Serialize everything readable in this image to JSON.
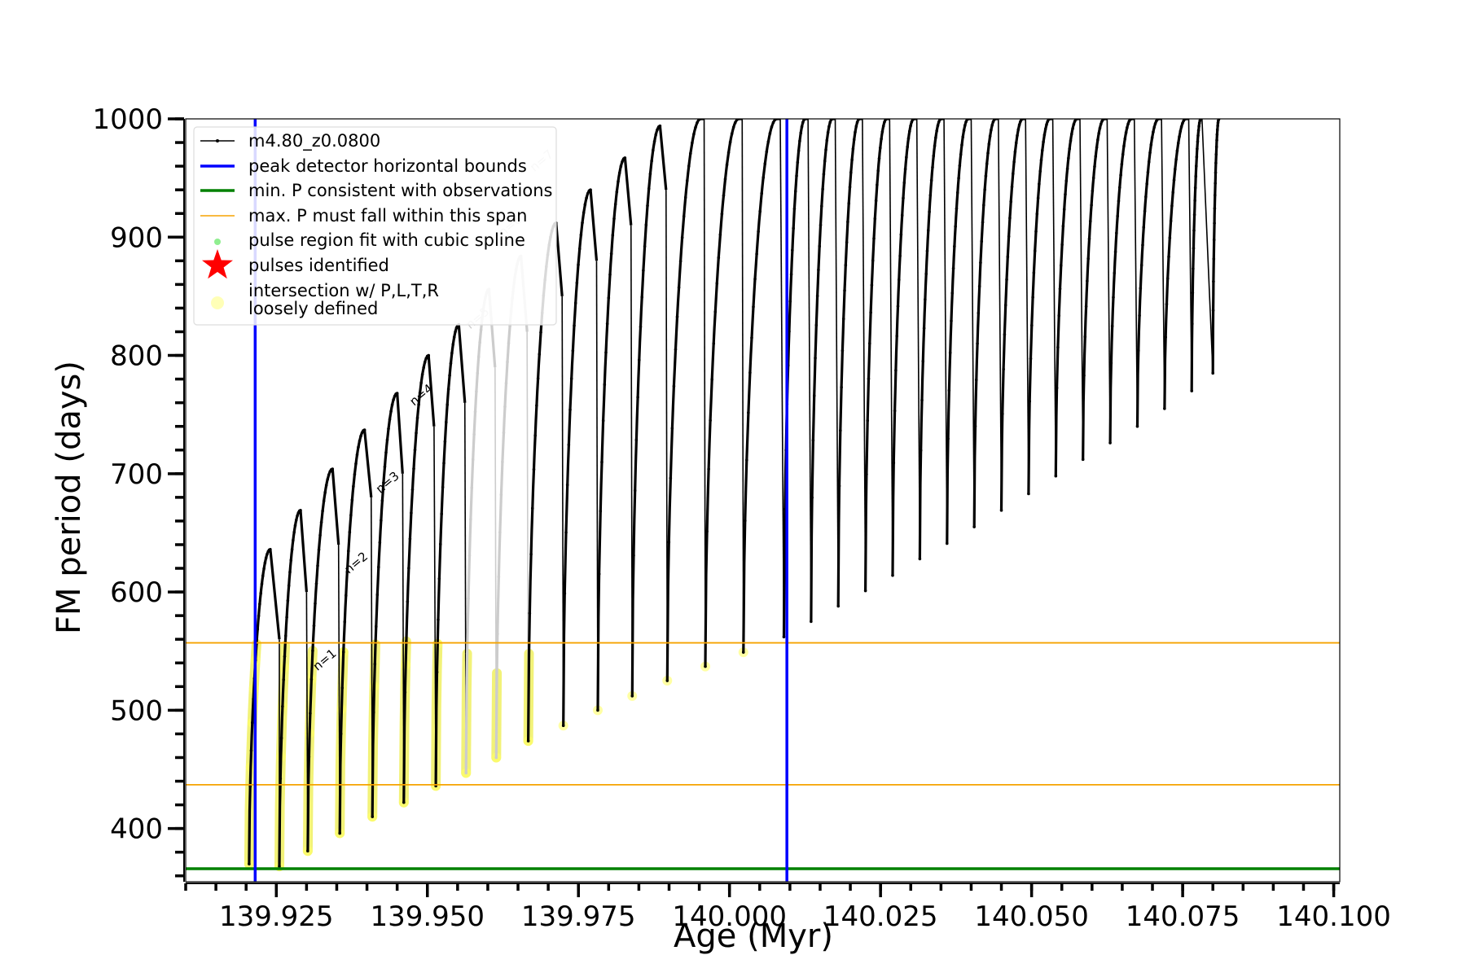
{
  "chart_data": {
    "type": "line",
    "title": "",
    "xlabel": "Age (Myr)",
    "ylabel": "FM period (days)",
    "xlim": [
      139.91,
      140.101
    ],
    "ylim": [
      355,
      1000
    ],
    "xticks": [
      139.925,
      139.95,
      139.975,
      140.0,
      140.025,
      140.05,
      140.075,
      140.1
    ],
    "xtick_labels": [
      "139.925",
      "139.950",
      "139.975",
      "140.000",
      "140.025",
      "140.050",
      "140.075",
      "140.100"
    ],
    "yticks": [
      400,
      500,
      600,
      700,
      800,
      900,
      1000
    ],
    "ytick_labels": [
      "400",
      "500",
      "600",
      "700",
      "800",
      "900",
      "1000"
    ],
    "grid": false,
    "legend_position": "top-left",
    "legend": [
      {
        "label": "m4.80_z0.0800",
        "marker": "line-dot",
        "color": "#000000"
      },
      {
        "label": "peak detector horizontal bounds",
        "marker": "line",
        "color": "#0000ff"
      },
      {
        "label": "min. P consistent with observations",
        "marker": "line",
        "color": "#008000"
      },
      {
        "label": "max. P must fall within this span",
        "marker": "thin-line",
        "color": "#f5a300"
      },
      {
        "label": "pulse region fit with cubic spline",
        "marker": "dot",
        "color": "#90ee90"
      },
      {
        "label": "pulses identified",
        "marker": "star",
        "color": "#ff0000"
      },
      {
        "label": "intersection w/ P,L,T,R",
        "label2": "loosely defined",
        "marker": "circle",
        "color": "#ffff99"
      }
    ],
    "vertical_lines": [
      {
        "x": 139.9215,
        "color": "#0000ff"
      },
      {
        "x": 140.0095,
        "color": "#0000ff"
      }
    ],
    "horizontal_lines": [
      {
        "y": 366,
        "color": "#008000"
      },
      {
        "y": 437,
        "color": "#f5a300"
      },
      {
        "y": 557,
        "color": "#f5a300"
      }
    ],
    "series": [
      {
        "line_color": "#000000",
        "cycles": [
          {
            "start": 139.9205,
            "min": 370,
            "peak_x": 139.924,
            "peak": 636,
            "end_x": 139.9255,
            "end_y": 560,
            "color": "#000000",
            "highlight": true
          },
          {
            "start": 139.9255,
            "min": 368,
            "peak_x": 139.929,
            "peak": 669,
            "end_x": 139.93,
            "end_y": 600,
            "color": "#000000",
            "highlight": true
          },
          {
            "start": 139.9302,
            "min": 381,
            "peak_x": 139.9343,
            "peak": 704,
            "end_x": 139.9353,
            "end_y": 640,
            "color": "#000000",
            "highlight": true
          },
          {
            "start": 139.9355,
            "min": 396,
            "peak_x": 139.9396,
            "peak": 737,
            "end_x": 139.9407,
            "end_y": 680,
            "color": "#000000",
            "highlight": true
          },
          {
            "start": 139.9409,
            "min": 410,
            "peak_x": 139.945,
            "peak": 768,
            "end_x": 139.9459,
            "end_y": 700,
            "color": "#000000",
            "highlight": true
          },
          {
            "start": 139.9461,
            "min": 422,
            "peak_x": 139.9502,
            "peak": 800,
            "end_x": 139.9511,
            "end_y": 740,
            "color": "#000000",
            "highlight": true
          },
          {
            "start": 139.9514,
            "min": 436,
            "peak_x": 139.9552,
            "peak": 826,
            "end_x": 139.9562,
            "end_y": 760,
            "color": "#000000",
            "highlight": true
          },
          {
            "start": 139.9564,
            "min": 447,
            "peak_x": 139.9602,
            "peak": 856,
            "end_x": 139.9612,
            "end_y": 790,
            "color": "#cccccc",
            "highlight": true
          },
          {
            "start": 139.9614,
            "min": 460,
            "peak_x": 139.9655,
            "peak": 884,
            "end_x": 139.9665,
            "end_y": 820,
            "color": "#cccccc",
            "highlight": true
          },
          {
            "start": 139.9667,
            "min": 474,
            "peak_x": 139.9713,
            "peak": 912,
            "end_x": 139.9723,
            "end_y": 850,
            "color": "#000000",
            "highlight": true
          },
          {
            "start": 139.9725,
            "min": 487,
            "peak_x": 139.977,
            "peak": 940,
            "end_x": 139.978,
            "end_y": 880,
            "color": "#000000",
            "highlight": true
          },
          {
            "start": 139.9782,
            "min": 500,
            "peak_x": 139.9827,
            "peak": 967,
            "end_x": 139.9837,
            "end_y": 910,
            "color": "#000000",
            "highlight": true
          },
          {
            "start": 139.9839,
            "min": 512,
            "peak_x": 139.9885,
            "peak": 994,
            "end_x": 139.9895,
            "end_y": 940,
            "color": "#000000",
            "highlight": true
          },
          {
            "start": 139.9897,
            "min": 525,
            "peak_x": 139.9952,
            "peak": 1000,
            "end_x": 139.9958,
            "end_y": 1000,
            "color": "#000000",
            "highlight": true
          },
          {
            "start": 139.996,
            "min": 537,
            "peak_x": 140.0015,
            "peak": 1000,
            "end_x": 140.0021,
            "end_y": 1000,
            "color": "#000000",
            "highlight": true
          },
          {
            "start": 140.0023,
            "min": 549,
            "peak_x": 140.0078,
            "peak": 1000,
            "end_x": 140.0084,
            "end_y": 1000,
            "color": "#000000",
            "highlight": true
          },
          {
            "start": 140.009,
            "min": 562,
            "peak_x": 140.0125,
            "peak": 1000,
            "end_x": 140.013,
            "end_y": 1000,
            "color": "#000000",
            "highlight": false
          },
          {
            "start": 140.0135,
            "min": 575,
            "peak_x": 140.017,
            "peak": 1000,
            "end_x": 140.0175,
            "end_y": 1000,
            "color": "#000000",
            "highlight": false
          },
          {
            "start": 140.018,
            "min": 588,
            "peak_x": 140.0215,
            "peak": 1000,
            "end_x": 140.022,
            "end_y": 1000,
            "color": "#000000",
            "highlight": false
          },
          {
            "start": 140.0225,
            "min": 601,
            "peak_x": 140.026,
            "peak": 1000,
            "end_x": 140.0265,
            "end_y": 1000,
            "color": "#000000",
            "highlight": false
          },
          {
            "start": 140.027,
            "min": 614,
            "peak_x": 140.0305,
            "peak": 1000,
            "end_x": 140.031,
            "end_y": 1000,
            "color": "#000000",
            "highlight": false
          },
          {
            "start": 140.0315,
            "min": 628,
            "peak_x": 140.035,
            "peak": 1000,
            "end_x": 140.0355,
            "end_y": 1000,
            "color": "#000000",
            "highlight": false
          },
          {
            "start": 140.036,
            "min": 641,
            "peak_x": 140.0395,
            "peak": 1000,
            "end_x": 140.04,
            "end_y": 1000,
            "color": "#000000",
            "highlight": false
          },
          {
            "start": 140.0405,
            "min": 655,
            "peak_x": 140.044,
            "peak": 1000,
            "end_x": 140.0445,
            "end_y": 1000,
            "color": "#000000",
            "highlight": false
          },
          {
            "start": 140.045,
            "min": 669,
            "peak_x": 140.0485,
            "peak": 1000,
            "end_x": 140.049,
            "end_y": 1000,
            "color": "#000000",
            "highlight": false
          },
          {
            "start": 140.0495,
            "min": 683,
            "peak_x": 140.053,
            "peak": 1000,
            "end_x": 140.0535,
            "end_y": 1000,
            "color": "#000000",
            "highlight": false
          },
          {
            "start": 140.054,
            "min": 698,
            "peak_x": 140.0575,
            "peak": 1000,
            "end_x": 140.058,
            "end_y": 1000,
            "color": "#000000",
            "highlight": false
          },
          {
            "start": 140.0585,
            "min": 712,
            "peak_x": 140.062,
            "peak": 1000,
            "end_x": 140.0625,
            "end_y": 1000,
            "color": "#000000",
            "highlight": false
          },
          {
            "start": 140.063,
            "min": 726,
            "peak_x": 140.0665,
            "peak": 1000,
            "end_x": 140.067,
            "end_y": 1000,
            "color": "#000000",
            "highlight": false
          },
          {
            "start": 140.0675,
            "min": 740,
            "peak_x": 140.071,
            "peak": 1000,
            "end_x": 140.0715,
            "end_y": 1000,
            "color": "#000000",
            "highlight": false
          },
          {
            "start": 140.072,
            "min": 755,
            "peak_x": 140.0755,
            "peak": 1000,
            "end_x": 140.076,
            "end_y": 1000,
            "color": "#000000",
            "highlight": false
          },
          {
            "start": 140.0765,
            "min": 770,
            "peak_x": 140.078,
            "peak": 1000,
            "end_x": 140.0782,
            "end_y": 1000,
            "color": "#000000",
            "highlight": false
          },
          {
            "start": 140.08,
            "min": 785,
            "peak_x": 140.081,
            "peak": 1000,
            "end_x": 140.0812,
            "end_y": 1000,
            "color": "#000000",
            "highlight": false
          }
        ]
      }
    ],
    "annotations": [
      {
        "text": "n=1",
        "x": 139.9318,
        "y": 533,
        "color": "#000000"
      },
      {
        "text": "n=2",
        "x": 139.937,
        "y": 615,
        "color": "#000000"
      },
      {
        "text": "n=3",
        "x": 139.9422,
        "y": 683,
        "color": "#000000"
      },
      {
        "text": "n=4",
        "x": 139.9478,
        "y": 757,
        "color": "#000000"
      },
      {
        "text": "n=5",
        "x": 139.9571,
        "y": 822,
        "color": "#cccccc"
      },
      {
        "text": "n=6",
        "x": 139.9625,
        "y": 900,
        "color": "#cccccc"
      },
      {
        "text": "n=7",
        "x": 139.9677,
        "y": 955,
        "color": "#cccccc"
      }
    ]
  }
}
